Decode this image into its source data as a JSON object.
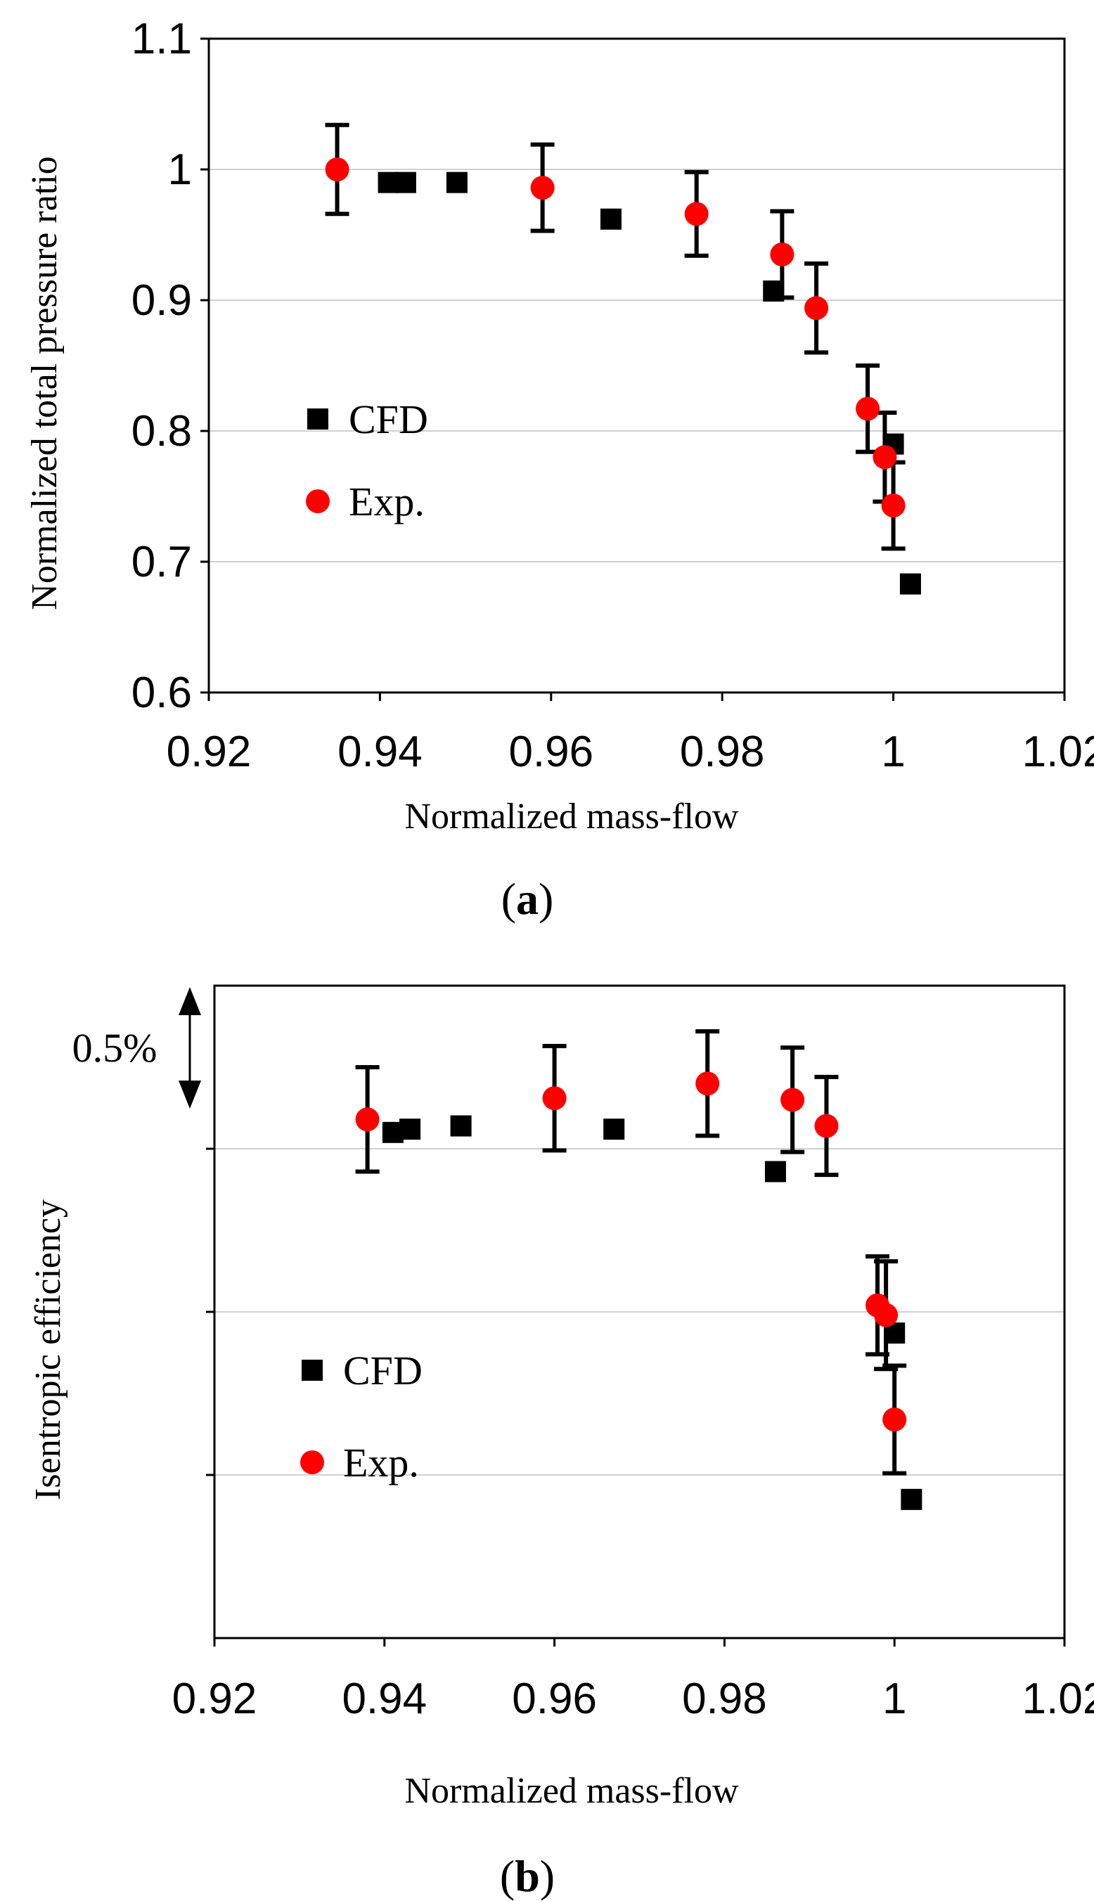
{
  "chart_data": [
    {
      "type": "scatter",
      "panel": "(a)",
      "caption_open": "(",
      "caption_letter": "a",
      "caption_close": ")",
      "xlabel": "Normalized mass-flow",
      "ylabel": "Normalized total pressure ratio",
      "xlim": [
        0.92,
        1.02
      ],
      "ylim": [
        0.6,
        1.1
      ],
      "xticks": [
        0.92,
        0.94,
        0.96,
        0.98,
        1.0,
        1.02
      ],
      "xtick_labels": [
        "0.92",
        "0.94",
        "0.96",
        "0.98",
        "1",
        "1.02"
      ],
      "yticks": [
        0.6,
        0.7,
        0.8,
        0.9,
        1.0,
        1.1
      ],
      "ytick_labels": [
        "0.6",
        "0.7",
        "0.8",
        "0.9",
        "1",
        "1.1"
      ],
      "grid": true,
      "legend_position": "left-middle",
      "legend": [
        "CFD",
        "Exp."
      ],
      "series": [
        {
          "name": "CFD",
          "marker": "square",
          "color": "#000000",
          "x": [
            0.941,
            0.943,
            0.949,
            0.967,
            0.986,
            1.0,
            1.002
          ],
          "y": [
            0.99,
            0.99,
            0.99,
            0.962,
            0.907,
            0.79,
            0.683
          ]
        },
        {
          "name": "Exp.",
          "marker": "circle",
          "color": "#ff0000",
          "x": [
            0.935,
            0.959,
            0.977,
            0.987,
            0.991,
            0.997,
            0.999,
            1.0
          ],
          "y": [
            1.0,
            0.986,
            0.966,
            0.935,
            0.894,
            0.817,
            0.78,
            0.743
          ],
          "err": [
            0.034,
            0.033,
            0.032,
            0.033,
            0.034,
            0.033,
            0.034,
            0.033
          ]
        }
      ]
    },
    {
      "type": "scatter",
      "panel": "(b)",
      "caption_open": "(",
      "caption_letter": "b",
      "caption_close": ")",
      "xlabel": "Normalized mass-flow",
      "ylabel": "Isentropic efficiency",
      "scale_annotation": "0.5%",
      "xlim": [
        0.92,
        1.02
      ],
      "ylim": [
        0,
        4
      ],
      "xticks": [
        0.92,
        0.94,
        0.96,
        0.98,
        1.0,
        1.02
      ],
      "xtick_labels": [
        "0.92",
        "0.94",
        "0.96",
        "0.98",
        "1",
        "1.02"
      ],
      "grid": true,
      "legend_position": "left-middle",
      "legend": [
        "CFD",
        "Exp."
      ],
      "series": [
        {
          "name": "CFD",
          "marker": "square",
          "color": "#000000",
          "x": [
            0.941,
            0.943,
            0.949,
            0.967,
            0.986,
            1.0,
            1.002
          ],
          "y": [
            3.1,
            3.12,
            3.14,
            3.12,
            2.86,
            1.87,
            0.85
          ]
        },
        {
          "name": "Exp.",
          "marker": "circle",
          "color": "#ff0000",
          "x": [
            0.938,
            0.96,
            0.978,
            0.988,
            0.992,
            0.998,
            0.999,
            1.0
          ],
          "y": [
            3.18,
            3.31,
            3.4,
            3.3,
            3.14,
            2.04,
            1.98,
            1.34
          ],
          "err": [
            0.32,
            0.32,
            0.32,
            0.32,
            0.3,
            0.3,
            0.33,
            0.33
          ]
        }
      ]
    }
  ]
}
